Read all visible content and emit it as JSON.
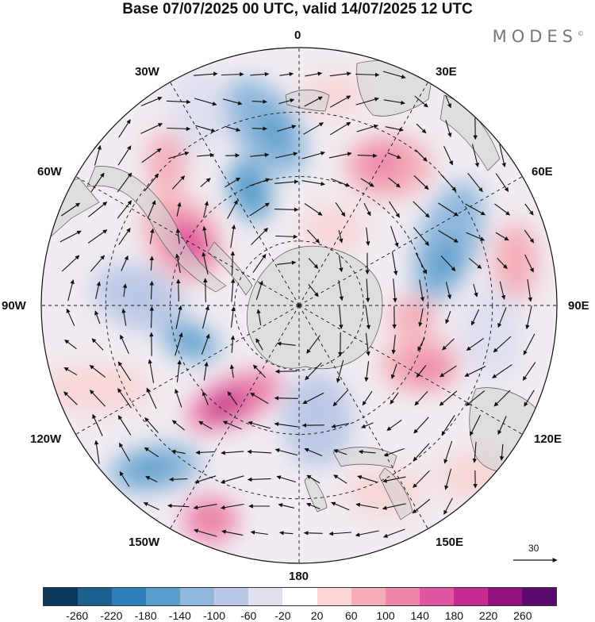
{
  "title": "Base 07/07/2025 00 UTC, valid 14/07/2025 12 UTC",
  "brand": "MODES",
  "brand_mark": "©",
  "longitude_labels": {
    "top": "0",
    "upper_left": "30W",
    "upper_right": "30E",
    "left_upper": "60W",
    "right_upper": "60E",
    "left": "90W",
    "right": "90E",
    "left_lower": "120W",
    "right_lower": "120E",
    "lower_left": "150W",
    "lower_right": "150E",
    "bottom": "180"
  },
  "reference_vector": {
    "label": "30"
  },
  "colorbar": {
    "colors": [
      "#0d3a5c",
      "#1d5f8f",
      "#2f80b8",
      "#5a9fcc",
      "#8fb8dc",
      "#bcc9e6",
      "#dedfef",
      "#ffffff",
      "#f8d5d6",
      "#f4aeb8",
      "#ee86ac",
      "#e0559f",
      "#c42a8f",
      "#93127e",
      "#5b0a6b"
    ],
    "tick_labels": [
      "-260",
      "-220",
      "-180",
      "-140",
      "-100",
      "-60",
      "-20",
      "20",
      "60",
      "100",
      "140",
      "180",
      "220",
      "260"
    ]
  }
}
